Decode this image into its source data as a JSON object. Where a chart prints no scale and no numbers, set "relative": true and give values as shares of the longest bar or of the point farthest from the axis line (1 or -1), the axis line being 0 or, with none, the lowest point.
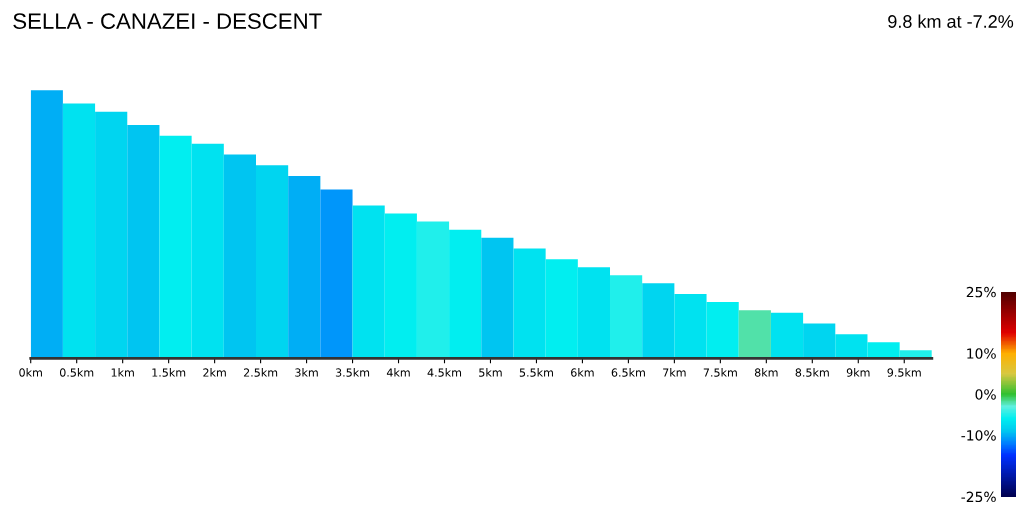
{
  "chart_data": {
    "type": "bar",
    "title": "SELLA - CANAZEI - DESCENT",
    "annotations": [
      "9.8 km at -7.2%"
    ],
    "relative": true,
    "x": [
      0.175,
      0.525,
      0.875,
      1.225,
      1.575,
      1.925,
      2.275,
      2.625,
      2.975,
      3.325,
      3.675,
      4.025,
      4.375,
      4.725,
      5.075,
      5.425,
      5.775,
      6.125,
      6.475,
      6.825,
      7.175,
      7.525,
      7.875,
      8.225,
      8.575,
      8.925,
      9.275,
      9.625
    ],
    "values": [
      1,
      0.95,
      0.92,
      0.87,
      0.83,
      0.8,
      0.76,
      0.72,
      0.68,
      0.63,
      0.57,
      0.54,
      0.51,
      0.48,
      0.45,
      0.41,
      0.37,
      0.34,
      0.31,
      0.28,
      0.24,
      0.21,
      0.18,
      0.17,
      0.13,
      0.09,
      0.06,
      0.03
    ],
    "cvalues": [
      -10,
      -7,
      -8,
      -9,
      -6,
      -7,
      -9,
      -8,
      -10,
      -11,
      -7,
      -6,
      -5,
      -6,
      -9,
      -7,
      -6,
      -7,
      -5,
      -8,
      -7,
      -6,
      -2,
      -7,
      -8,
      -7,
      -6,
      -5
    ],
    "clim": [
      -25,
      25
    ],
    "cticks": [
      {
        "value": -25,
        "label": "-25%"
      },
      {
        "value": -10,
        "label": "-10%"
      },
      {
        "value": 0,
        "label": "0%"
      },
      {
        "value": 10,
        "label": "10%"
      },
      {
        "value": 25,
        "label": "25%"
      }
    ],
    "xlim": [
      0,
      9.8
    ],
    "xticks": [
      {
        "value": 0,
        "label": "0km"
      },
      {
        "value": 0.5,
        "label": "0.5km"
      },
      {
        "value": 1,
        "label": "1km"
      },
      {
        "value": 1.5,
        "label": "1.5km"
      },
      {
        "value": 2,
        "label": "2km"
      },
      {
        "value": 2.5,
        "label": "2.5km"
      },
      {
        "value": 3,
        "label": "3km"
      },
      {
        "value": 3.5,
        "label": "3.5km"
      },
      {
        "value": 4,
        "label": "4km"
      },
      {
        "value": 4.5,
        "label": "4.5km"
      },
      {
        "value": 5,
        "label": "5km"
      },
      {
        "value": 5.5,
        "label": "5.5km"
      },
      {
        "value": 6,
        "label": "6km"
      },
      {
        "value": 6.5,
        "label": "6.5km"
      },
      {
        "value": 7,
        "label": "7km"
      },
      {
        "value": 7.5,
        "label": "7.5km"
      },
      {
        "value": 8,
        "label": "8km"
      },
      {
        "value": 8.5,
        "label": "8.5km"
      },
      {
        "value": 9,
        "label": "9km"
      },
      {
        "value": 9.5,
        "label": "9.5km"
      }
    ]
  }
}
